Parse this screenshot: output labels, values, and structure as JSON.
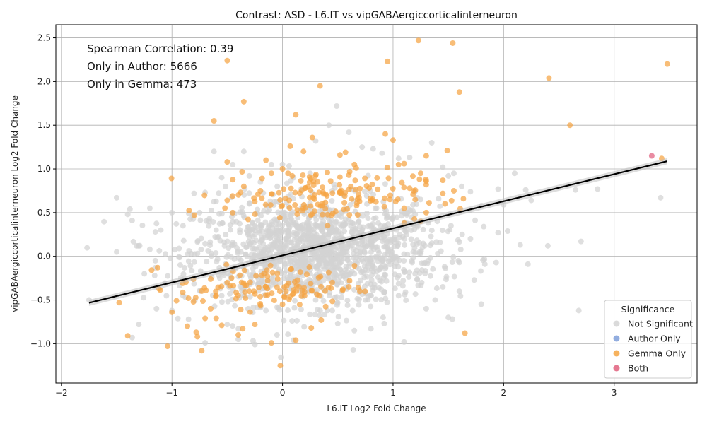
{
  "chart_data": {
    "type": "scatter",
    "title": "Contrast: ASD - L6.IT vs vipGABAergiccorticalinterneuron",
    "xlabel": "L6.IT Log2 Fold Change",
    "ylabel": "vipGABAergiccorticalinterneuron Log2 Fold Change",
    "xlim": [
      -2.05,
      3.75
    ],
    "ylim": [
      -1.45,
      2.65
    ],
    "xticks": [
      -2,
      -1,
      0,
      1,
      2,
      3
    ],
    "xtick_labels": [
      "−2",
      "−1",
      "0",
      "1",
      "2",
      "3"
    ],
    "yticks": [
      -1.0,
      -0.5,
      0.0,
      0.5,
      1.0,
      1.5,
      2.0,
      2.5
    ],
    "ytick_labels": [
      "−1.0",
      "−0.5",
      "0.0",
      "0.5",
      "1.0",
      "1.5",
      "2.0",
      "2.5"
    ],
    "grid": true,
    "annotations": [
      "Spearman Correlation: 0.39",
      "Only in Author: 5666",
      "Only in Gemma: 473"
    ],
    "legend": {
      "title": "Significance",
      "placement": "lower-right",
      "entries": [
        {
          "label": "Not Significant",
          "color": "#d3d3d3"
        },
        {
          "label": "Author Only",
          "color": "#7f9fd9"
        },
        {
          "label": "Gemma Only",
          "color": "#f5a442"
        },
        {
          "label": "Both",
          "color": "#e0607e"
        }
      ]
    },
    "regression": {
      "slope": 0.31,
      "intercept": 0.01,
      "x_range": [
        -1.75,
        3.48
      ],
      "color": "#000000"
    },
    "series": [
      {
        "name": "Not Significant",
        "color": "#d3d3d3",
        "points": [
          [
            -1.5,
            0.67
          ],
          [
            -1.38,
            0.54
          ],
          [
            -1.4,
            0.48
          ],
          [
            -1.36,
            0.41
          ],
          [
            -1.5,
            0.05
          ],
          [
            -1.32,
            0.12
          ],
          [
            -1.2,
            0.55
          ],
          [
            -1.15,
            0.28
          ],
          [
            -1.1,
            0.3
          ],
          [
            -1.2,
            0.08
          ],
          [
            -1.15,
            -0.05
          ],
          [
            -1.25,
            -0.2
          ],
          [
            -1.3,
            -0.78
          ],
          [
            -1.36,
            -0.93
          ],
          [
            -1.75,
            -0.5
          ],
          [
            -1.14,
            -0.6
          ],
          [
            -1.05,
            -0.45
          ],
          [
            -0.8,
            0.72
          ],
          [
            -0.7,
            0.73
          ],
          [
            -0.6,
            0.63
          ],
          [
            -0.62,
            1.2
          ],
          [
            -0.55,
            0.9
          ],
          [
            -0.45,
            1.05
          ],
          [
            -0.35,
            1.2
          ],
          [
            -0.3,
            0.92
          ],
          [
            -0.2,
            0.85
          ],
          [
            -0.1,
            1.05
          ],
          [
            0.0,
            1.05
          ],
          [
            0.1,
            0.9
          ],
          [
            0.25,
            0.95
          ],
          [
            0.3,
            1.32
          ],
          [
            0.42,
            1.5
          ],
          [
            0.49,
            1.72
          ],
          [
            0.6,
            1.42
          ],
          [
            0.72,
            1.25
          ],
          [
            0.82,
            1.23
          ],
          [
            0.9,
            1.18
          ],
          [
            1.05,
            1.12
          ],
          [
            1.15,
            1.13
          ],
          [
            1.35,
            1.3
          ],
          [
            1.45,
            1.02
          ],
          [
            1.5,
            0.92
          ],
          [
            1.55,
            0.95
          ],
          [
            1.62,
            0.8
          ],
          [
            1.7,
            0.74
          ],
          [
            1.8,
            0.58
          ],
          [
            1.95,
            0.77
          ],
          [
            2.0,
            0.59
          ],
          [
            2.1,
            0.95
          ],
          [
            2.2,
            0.76
          ],
          [
            2.25,
            0.64
          ],
          [
            2.4,
            0.12
          ],
          [
            2.15,
            0.13
          ],
          [
            2.22,
            -0.09
          ],
          [
            1.95,
            0.27
          ],
          [
            1.82,
            0.34
          ],
          [
            1.83,
            -0.09
          ],
          [
            1.7,
            0.2
          ],
          [
            1.6,
            -0.07
          ],
          [
            1.6,
            -0.4
          ],
          [
            1.5,
            -0.7
          ],
          [
            1.45,
            -0.35
          ],
          [
            1.38,
            -0.5
          ],
          [
            1.3,
            -0.6
          ],
          [
            1.1,
            -0.98
          ],
          [
            1.05,
            -0.45
          ],
          [
            0.92,
            -0.77
          ],
          [
            0.8,
            -0.83
          ],
          [
            0.64,
            -1.07
          ],
          [
            0.65,
            -0.85
          ],
          [
            0.5,
            -0.77
          ],
          [
            0.45,
            -0.62
          ],
          [
            0.3,
            -0.5
          ],
          [
            0.1,
            -0.96
          ],
          [
            -0.05,
            -0.9
          ],
          [
            -0.25,
            -1.01
          ],
          [
            -0.4,
            -0.95
          ],
          [
            -0.5,
            -0.78
          ],
          [
            -0.7,
            -0.99
          ],
          [
            -0.85,
            -0.72
          ],
          [
            -1.0,
            -0.62
          ],
          [
            -0.9,
            -0.45
          ],
          [
            2.65,
            0.76
          ],
          [
            2.85,
            0.77
          ],
          [
            2.68,
            -0.62
          ],
          [
            2.7,
            0.17
          ],
          [
            3.42,
            0.67
          ],
          [
            -1.0,
            0.5
          ],
          [
            -0.75,
            0.5
          ],
          [
            -0.9,
            0.35
          ],
          [
            1.25,
            0.65
          ],
          [
            1.4,
            0.4
          ],
          [
            1.35,
            0.15
          ],
          [
            1.2,
            -0.2
          ],
          [
            1.1,
            0.3
          ],
          [
            0.95,
            0.45
          ],
          [
            -0.55,
            -0.45
          ],
          [
            -0.6,
            0.3
          ],
          [
            -0.3,
            0.6
          ],
          [
            0.55,
            0.7
          ],
          [
            0.75,
            -0.5
          ],
          [
            -0.15,
            -0.62
          ]
        ],
        "cloud": {
          "center": [
            0.3,
            0.05
          ],
          "spread": [
            0.55,
            0.3
          ],
          "count": 1400
        }
      },
      {
        "name": "Gemma Only",
        "color": "#f5a442",
        "points": [
          [
            1.23,
            2.47
          ],
          [
            1.54,
            2.44
          ],
          [
            -0.5,
            2.24
          ],
          [
            0.95,
            2.23
          ],
          [
            3.48,
            2.2
          ],
          [
            2.41,
            2.04
          ],
          [
            0.34,
            1.95
          ],
          [
            1.6,
            1.88
          ],
          [
            -0.35,
            1.77
          ],
          [
            0.12,
            1.62
          ],
          [
            -0.62,
            1.55
          ],
          [
            2.6,
            1.5
          ],
          [
            0.93,
            1.4
          ],
          [
            0.27,
            1.36
          ],
          [
            1.0,
            1.33
          ],
          [
            0.07,
            1.26
          ],
          [
            1.49,
            1.21
          ],
          [
            0.19,
            1.2
          ],
          [
            0.57,
            1.19
          ],
          [
            0.52,
            1.16
          ],
          [
            1.3,
            1.15
          ],
          [
            3.43,
            1.12
          ],
          [
            -0.5,
            1.08
          ],
          [
            -0.15,
            1.1
          ],
          [
            0.65,
            1.05
          ],
          [
            1.05,
            1.05
          ],
          [
            1.1,
            1.06
          ],
          [
            0.0,
            1.0
          ],
          [
            1.25,
            0.95
          ],
          [
            1.45,
            0.87
          ],
          [
            1.55,
            0.75
          ],
          [
            1.45,
            0.72
          ],
          [
            1.3,
            0.82
          ],
          [
            1.15,
            0.78
          ],
          [
            1.2,
            0.65
          ],
          [
            1.1,
            0.55
          ],
          [
            1.3,
            0.5
          ],
          [
            1.47,
            0.6
          ],
          [
            1.25,
            0.4
          ],
          [
            0.05,
            0.95
          ],
          [
            -0.1,
            0.95
          ],
          [
            -0.2,
            0.75
          ],
          [
            -0.35,
            0.8
          ],
          [
            -0.5,
            0.64
          ],
          [
            -0.45,
            0.5
          ],
          [
            -1.4,
            -0.91
          ],
          [
            -1.04,
            -1.03
          ],
          [
            -0.86,
            -0.8
          ],
          [
            -0.78,
            -0.87
          ],
          [
            -0.77,
            -0.92
          ],
          [
            -0.73,
            -1.08
          ],
          [
            -0.7,
            -0.71
          ],
          [
            -0.6,
            -0.71
          ],
          [
            -0.55,
            -0.79
          ],
          [
            -0.4,
            -0.9
          ],
          [
            -0.36,
            -0.83
          ],
          [
            -0.25,
            -0.78
          ],
          [
            -0.1,
            -0.99
          ],
          [
            0.12,
            -0.96
          ],
          [
            0.26,
            -0.82
          ],
          [
            0.35,
            -0.73
          ],
          [
            -0.02,
            -1.25
          ],
          [
            1.65,
            -0.88
          ],
          [
            0.7,
            -0.4
          ],
          [
            -1.0,
            -0.64
          ],
          [
            -0.85,
            -0.48
          ],
          [
            -0.65,
            -0.6
          ],
          [
            -0.5,
            -0.3
          ],
          [
            -0.3,
            -0.4
          ],
          [
            -0.15,
            -0.35
          ],
          [
            0.0,
            -0.55
          ],
          [
            0.2,
            -0.45
          ],
          [
            0.45,
            -0.3
          ],
          [
            0.6,
            -0.35
          ],
          [
            -0.6,
            -0.45
          ]
        ],
        "clouds": [
          {
            "center": [
              0.35,
              0.7
            ],
            "spread": [
              0.45,
              0.15
            ],
            "count": 150
          },
          {
            "center": [
              -0.15,
              -0.35
            ],
            "spread": [
              0.4,
              0.12
            ],
            "count": 110
          }
        ]
      },
      {
        "name": "Both",
        "color": "#e0607e",
        "points": [
          [
            3.34,
            1.15
          ]
        ]
      }
    ]
  }
}
